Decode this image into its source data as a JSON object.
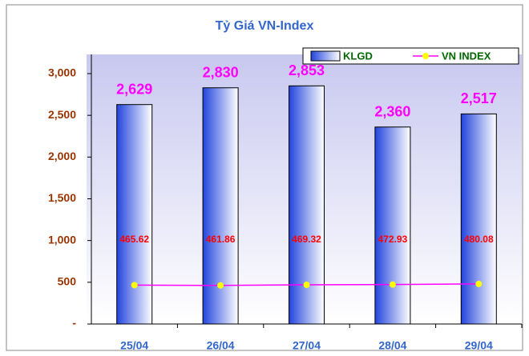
{
  "chart_data": {
    "type": "bar",
    "title": "Tỷ Giá VN-Index",
    "categories": [
      "25/04",
      "26/04",
      "27/04",
      "28/04",
      "29/04"
    ],
    "series": [
      {
        "name": "KLGD",
        "type": "bar",
        "color": "#3355dd",
        "values": [
          2629,
          2830,
          2853,
          2360,
          2517
        ],
        "value_labels": [
          "2,629",
          "2,830",
          "2,853",
          "2,360",
          "2,517"
        ]
      },
      {
        "name": "VN INDEX",
        "type": "line",
        "color": "#ff00ff",
        "marker_color": "#ffff00",
        "values": [
          465.62,
          461.86,
          469.32,
          472.93,
          480.08
        ]
      }
    ],
    "ylim": [
      0,
      3230
    ],
    "yticks": [
      {
        "value": 0,
        "label": "-"
      },
      500,
      {
        "value": 1000,
        "label": "1,000"
      },
      {
        "value": 1500,
        "label": "1,500"
      },
      {
        "value": 2000,
        "label": "2,000"
      },
      {
        "value": 2500,
        "label": "2,500"
      },
      {
        "value": 3000,
        "label": "3,000"
      }
    ],
    "legend": "top-right"
  }
}
